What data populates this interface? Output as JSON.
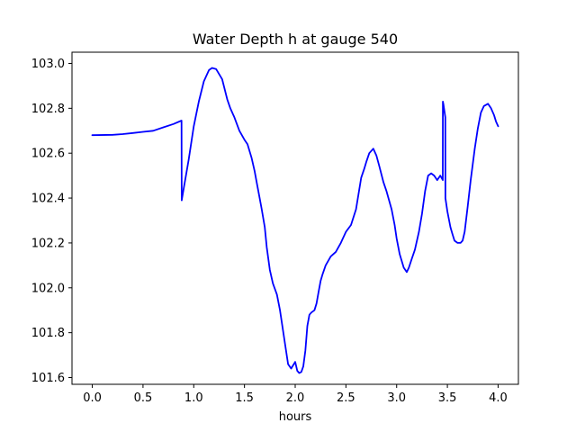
{
  "chart_data": {
    "type": "line",
    "title": "Water Depth h at gauge 540",
    "xlabel": "hours",
    "ylabel": "",
    "xlim": [
      -0.2,
      4.2
    ],
    "ylim": [
      101.57,
      103.05
    ],
    "xticks": [
      0.0,
      0.5,
      1.0,
      1.5,
      2.0,
      2.5,
      3.0,
      3.5,
      4.0
    ],
    "xtick_labels": [
      "0.0",
      "0.5",
      "1.0",
      "1.5",
      "2.0",
      "2.5",
      "3.0",
      "3.5",
      "4.0"
    ],
    "yticks": [
      101.6,
      101.8,
      102.0,
      102.2,
      102.4,
      102.6,
      102.8,
      103.0
    ],
    "ytick_labels": [
      "101.6",
      "101.8",
      "102.0",
      "102.2",
      "102.4",
      "102.6",
      "102.8",
      "103.0"
    ],
    "grid": false,
    "series": [
      {
        "color": "#0000ff",
        "x": [
          0.0,
          0.2,
          0.3,
          0.4,
          0.5,
          0.6,
          0.7,
          0.8,
          0.88,
          0.881,
          0.9,
          0.95,
          1.0,
          1.05,
          1.1,
          1.15,
          1.18,
          1.22,
          1.28,
          1.33,
          1.36,
          1.4,
          1.45,
          1.5,
          1.53,
          1.57,
          1.6,
          1.62,
          1.65,
          1.67,
          1.7,
          1.72,
          1.75,
          1.78,
          1.82,
          1.85,
          1.9,
          1.93,
          1.96,
          2.0,
          2.02,
          2.04,
          2.06,
          2.08,
          2.1,
          2.12,
          2.14,
          2.16,
          2.19,
          2.21,
          2.23,
          2.25,
          2.27,
          2.3,
          2.35,
          2.4,
          2.45,
          2.47,
          2.5,
          2.55,
          2.6,
          2.65,
          2.68,
          2.7,
          2.73,
          2.77,
          2.8,
          2.83,
          2.87,
          2.9,
          2.95,
          2.98,
          3.0,
          3.03,
          3.07,
          3.1,
          3.12,
          3.15,
          3.18,
          3.22,
          3.25,
          3.28,
          3.31,
          3.34,
          3.37,
          3.4,
          3.43,
          3.455,
          3.456,
          3.46,
          3.48,
          3.481,
          3.5,
          3.53,
          3.55,
          3.57,
          3.6,
          3.63,
          3.65,
          3.67,
          3.7,
          3.73,
          3.77,
          3.8,
          3.83,
          3.86,
          3.9,
          3.93,
          3.96,
          3.98,
          4.0
        ],
        "y": [
          102.68,
          102.682,
          102.685,
          102.69,
          102.695,
          102.7,
          102.715,
          102.73,
          102.745,
          102.39,
          102.44,
          102.57,
          102.72,
          102.83,
          102.92,
          102.97,
          102.98,
          102.975,
          102.93,
          102.84,
          102.8,
          102.76,
          102.7,
          102.66,
          102.64,
          102.58,
          102.52,
          102.47,
          102.4,
          102.35,
          102.27,
          102.18,
          102.08,
          102.02,
          101.97,
          101.9,
          101.75,
          101.66,
          101.64,
          101.67,
          101.63,
          101.62,
          101.625,
          101.65,
          101.72,
          101.83,
          101.88,
          101.89,
          101.9,
          101.93,
          101.98,
          102.03,
          102.06,
          102.1,
          102.14,
          102.16,
          102.2,
          102.22,
          102.25,
          102.28,
          102.35,
          102.49,
          102.53,
          102.56,
          102.6,
          102.62,
          102.59,
          102.54,
          102.47,
          102.43,
          102.35,
          102.28,
          102.22,
          102.15,
          102.09,
          102.07,
          102.09,
          102.13,
          102.17,
          102.25,
          102.33,
          102.43,
          102.5,
          102.51,
          102.5,
          102.48,
          102.5,
          102.48,
          102.83,
          102.82,
          102.76,
          102.4,
          102.34,
          102.27,
          102.24,
          102.21,
          102.2,
          102.2,
          102.21,
          102.25,
          102.36,
          102.48,
          102.62,
          102.71,
          102.78,
          102.81,
          102.82,
          102.8,
          102.77,
          102.74,
          102.72
        ]
      }
    ]
  }
}
